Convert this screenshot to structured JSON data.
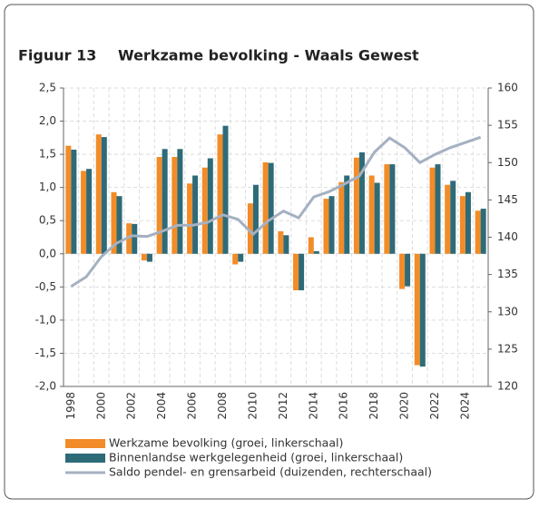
{
  "chart_data": {
    "type": "bar_line",
    "figure_label": "Figuur 13",
    "title": "Werkzame bevolking - Waals Gewest",
    "categories": [
      "1998",
      null,
      "2000",
      null,
      "2002",
      null,
      "2004",
      null,
      "2006",
      null,
      "2008",
      null,
      "2010",
      null,
      "2012",
      null,
      "2014",
      null,
      "2016",
      null,
      "2018",
      null,
      "2020",
      null,
      "2022",
      null,
      "2024",
      null
    ],
    "series": [
      {
        "name": "Werkzame bevolking (groei, linkerschaal)",
        "color": "#f28c28",
        "type": "bar",
        "values": [
          1.63,
          1.25,
          1.8,
          0.93,
          0.46,
          -0.1,
          1.46,
          1.46,
          1.06,
          1.3,
          1.8,
          -0.16,
          0.76,
          1.38,
          0.34,
          -0.55,
          0.25,
          0.83,
          1.08,
          1.45,
          1.18,
          1.35,
          -0.53,
          -1.68,
          1.3,
          1.04,
          0.87,
          0.65
        ]
      },
      {
        "name": "Binnenlandse werkgelegenheid (groei, linkerschaal)",
        "color": "#2e6b78",
        "type": "bar",
        "values": [
          1.57,
          1.28,
          1.76,
          0.87,
          0.45,
          -0.12,
          1.58,
          1.58,
          1.18,
          1.44,
          1.93,
          -0.12,
          1.04,
          1.37,
          0.28,
          -0.55,
          0.04,
          0.87,
          1.18,
          1.53,
          1.07,
          1.35,
          -0.49,
          -1.7,
          1.35,
          1.1,
          0.93,
          0.68
        ]
      },
      {
        "name": "Saldo pendel- en grensarbeid (duizenden, rechterschaal)",
        "color": "#a5b1c2",
        "type": "line",
        "axis": "y2",
        "values": [
          133.4,
          134.7,
          137.4,
          139.2,
          140.2,
          140.1,
          140.8,
          141.6,
          141.6,
          142.0,
          143.0,
          142.4,
          140.4,
          142.2,
          143.5,
          142.6,
          145.4,
          146.1,
          147.1,
          148.2,
          151.4,
          153.3,
          152.0,
          150.0,
          151.1,
          152.0,
          152.7,
          153.4
        ]
      }
    ],
    "ylim": [
      -2.0,
      2.5
    ],
    "yticks": [
      {
        "value": -2.0,
        "label": "-2,0"
      },
      {
        "value": -1.5,
        "label": "-1,5"
      },
      {
        "value": -1.0,
        "label": "-1,0"
      },
      {
        "value": -0.5,
        "label": "-0,5"
      },
      {
        "value": 0,
        "label": "0,0"
      },
      {
        "value": 0.5,
        "label": "0,5"
      },
      {
        "value": 1.0,
        "label": "1,0"
      },
      {
        "value": 1.5,
        "label": "1,5"
      },
      {
        "value": 2.0,
        "label": "2,0"
      },
      {
        "value": 2.5,
        "label": "2,5"
      }
    ],
    "y2lim": [
      120,
      160
    ],
    "y2ticks": [
      120,
      125,
      130,
      135,
      140,
      145,
      150,
      155,
      160
    ],
    "grid": true
  }
}
